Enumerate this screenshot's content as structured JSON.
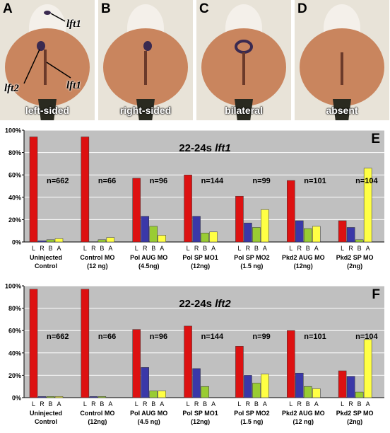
{
  "panels": [
    {
      "letter": "A",
      "caption": "left-sided"
    },
    {
      "letter": "B",
      "caption": "right-sided"
    },
    {
      "letter": "C",
      "caption": "bilateral"
    },
    {
      "letter": "D",
      "caption": "absent"
    }
  ],
  "callouts": {
    "lft1_top": "lft1",
    "lft2": "lft2",
    "lft1_bottom": "lft1"
  },
  "colors": {
    "L": "#dd1111",
    "R": "#3a38a8",
    "B": "#99cc33",
    "A": "#ffff44",
    "plot_bg": "#c0c0c0"
  },
  "chart_data": [
    {
      "type": "bar",
      "panel_letter": "E",
      "title_prefix": "22-24s ",
      "title_gene": "lft1",
      "ylim": [
        0,
        100
      ],
      "ytick_labels": [
        "0%",
        "20%",
        "40%",
        "60%",
        "80%",
        "100%"
      ],
      "bar_labels": [
        "L",
        "R",
        "B",
        "A"
      ],
      "series_keys": [
        "L",
        "R",
        "B",
        "A"
      ],
      "groups": [
        {
          "label1": "Uninjected",
          "label2": "Control",
          "n": "n=662",
          "values": [
            94,
            1,
            2,
            3
          ]
        },
        {
          "label1": "Control MO",
          "label2": "(12 ng)",
          "n": "n=66",
          "values": [
            94,
            0,
            2,
            4
          ]
        },
        {
          "label1": "Pol AUG  MO",
          "label2": "(4.5ng)",
          "n": "n=96",
          "values": [
            57,
            23,
            14,
            6
          ]
        },
        {
          "label1": "Pol SP MO1",
          "label2": "(12ng)",
          "n": "n=144",
          "values": [
            60,
            23,
            8,
            9
          ]
        },
        {
          "label1": "Pol SP MO2",
          "label2": "(1.5 ng)",
          "n": "n=99",
          "values": [
            41,
            17,
            13,
            29
          ]
        },
        {
          "label1": "Pkd2  AUG MO",
          "label2": "(12ng)",
          "n": "n=101",
          "values": [
            55,
            19,
            12,
            14
          ]
        },
        {
          "label1": "Pkd2 SP MO",
          "label2": "(2ng)",
          "n": "n=104",
          "values": [
            19,
            13,
            2,
            66
          ]
        }
      ]
    },
    {
      "type": "bar",
      "panel_letter": "F",
      "title_prefix": "22-24s ",
      "title_gene": "lft2",
      "ylim": [
        0,
        100
      ],
      "ytick_labels": [
        "0%",
        "20%",
        "40%",
        "60%",
        "80%",
        "100%"
      ],
      "bar_labels": [
        "L",
        "R",
        "B",
        "A"
      ],
      "series_keys": [
        "L",
        "R",
        "B",
        "A"
      ],
      "groups": [
        {
          "label1": "Uninjected",
          "label2": "Control",
          "n": "n=662",
          "values": [
            97,
            1,
            1,
            1
          ]
        },
        {
          "label1": "Control MO",
          "label2": "(12ng)",
          "n": "n=66",
          "values": [
            97,
            1,
            1,
            0
          ]
        },
        {
          "label1": "Pol AUG MO",
          "label2": "(4.5 ng)",
          "n": "n=96",
          "values": [
            61,
            27,
            6,
            6
          ]
        },
        {
          "label1": "Pol SP MO1",
          "label2": "(12ng)",
          "n": "n=144",
          "values": [
            64,
            26,
            10,
            0
          ]
        },
        {
          "label1": "Pol SP MO2",
          "label2": "(1.5 ng)",
          "n": "n=99",
          "values": [
            46,
            20,
            13,
            21
          ]
        },
        {
          "label1": "Pkd2 AUG MO",
          "label2": "(12 ng)",
          "n": "n=101",
          "values": [
            60,
            22,
            10,
            8
          ]
        },
        {
          "label1": "Pkd2 SP MO",
          "label2": "(2ng)",
          "n": "n=104",
          "values": [
            24,
            19,
            5,
            52
          ]
        }
      ]
    }
  ]
}
